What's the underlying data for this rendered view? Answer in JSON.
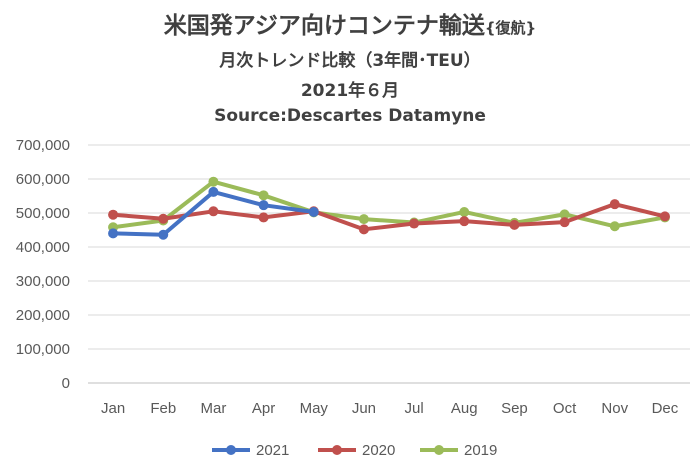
{
  "chart_data": {
    "type": "line",
    "title": "米国発アジア向けコンテナ輸送",
    "title_suffix": "{復航}",
    "subtitle": "月次トレンド比較（3年間･TEU）",
    "date_label": "2021年６月",
    "source": "Source:Descartes Datamyne",
    "categories": [
      "Jan",
      "Feb",
      "Mar",
      "Apr",
      "May",
      "Jun",
      "Jul",
      "Aug",
      "Sep",
      "Oct",
      "Nov",
      "Dec"
    ],
    "y_ticks": [
      "0",
      "100,000",
      "200,000",
      "300,000",
      "400,000",
      "500,000",
      "600,000",
      "700,000"
    ],
    "ylim": [
      0,
      700000
    ],
    "grid": true,
    "legend_position": "bottom",
    "series": [
      {
        "name": "2021",
        "color": "#4472C4",
        "values": [
          440000,
          436000,
          562000,
          523000,
          503000,
          null,
          null,
          null,
          null,
          null,
          null,
          null
        ]
      },
      {
        "name": "2020",
        "color": "#C0504D",
        "values": [
          495000,
          483000,
          505000,
          487000,
          505000,
          452000,
          469000,
          476000,
          465000,
          473000,
          526000,
          490000
        ]
      },
      {
        "name": "2019",
        "color": "#9BBB59",
        "values": [
          458000,
          478000,
          592000,
          552000,
          502000,
          482000,
          472000,
          503000,
          471000,
          496000,
          461000,
          487000
        ]
      }
    ]
  }
}
